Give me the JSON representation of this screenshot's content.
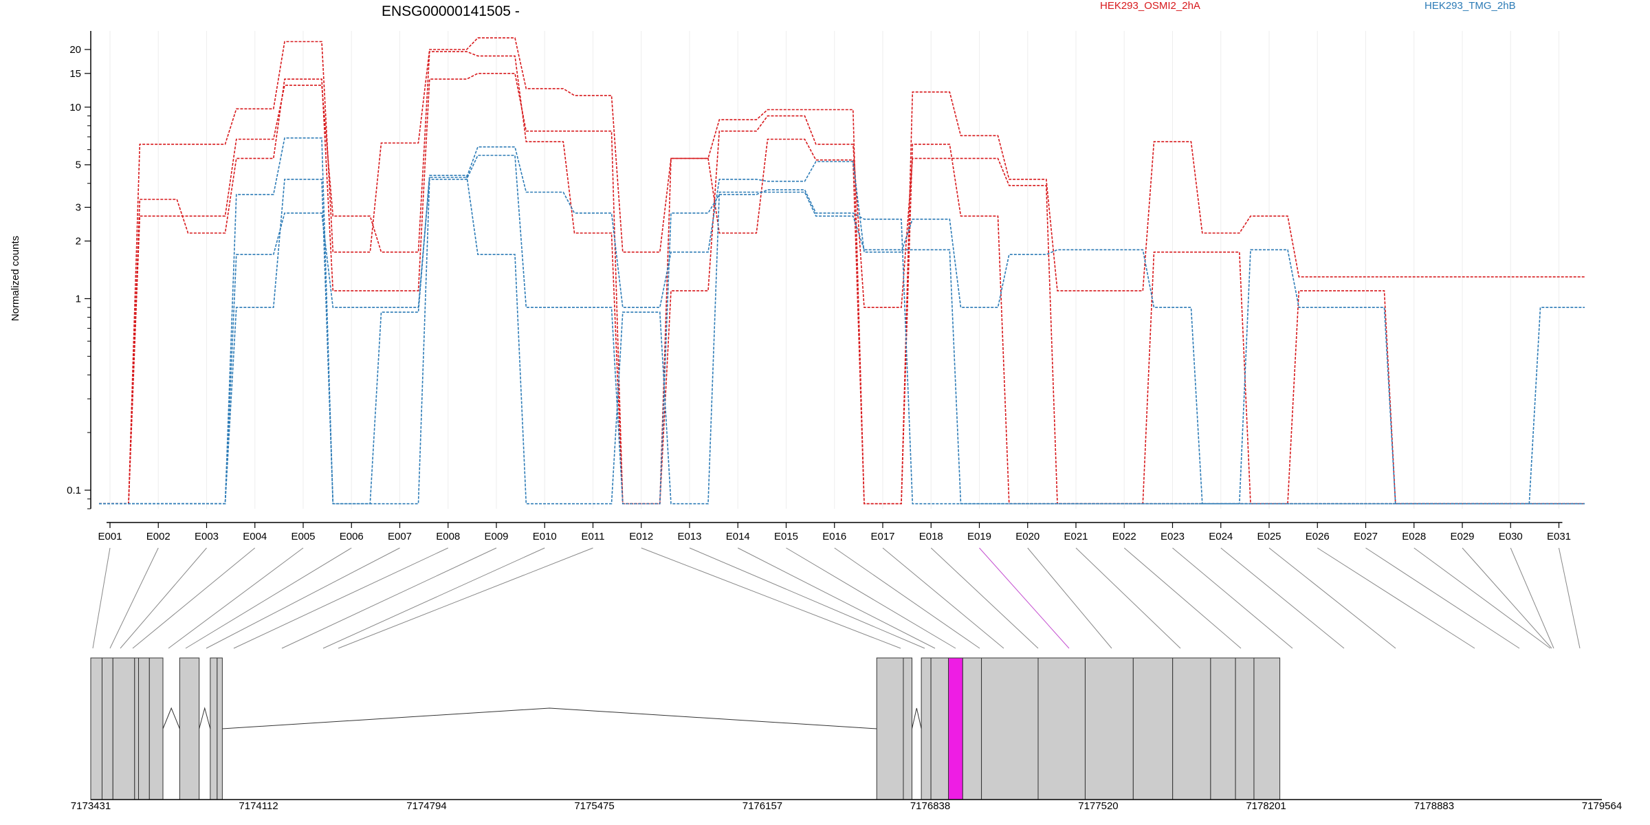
{
  "chart_data": {
    "type": "line",
    "title": "ENSG00000141505 -",
    "ylabel": "Normalized counts",
    "y_scale": "log",
    "ylim": [
      0.08,
      25
    ],
    "y_ticks": [
      0.1,
      1,
      2,
      3,
      5,
      10,
      15,
      20
    ],
    "y_tick_labels": [
      "0.1",
      "1",
      "2",
      "3",
      "5",
      "10",
      "15",
      "20"
    ],
    "grid": true,
    "legend_placement": "top",
    "categories": [
      "E001",
      "E002",
      "E003",
      "E004",
      "E005",
      "E006",
      "E007",
      "E008",
      "E009",
      "E010",
      "E011",
      "E012",
      "E013",
      "E014",
      "E015",
      "E016",
      "E017",
      "E018",
      "E019",
      "E020",
      "E021",
      "E022",
      "E023",
      "E024",
      "E025",
      "E026",
      "E027",
      "E028",
      "E029",
      "E030",
      "E031"
    ],
    "groups": [
      {
        "name": "HEK293_OSMI2_2hA",
        "color": "#d7191c"
      },
      {
        "name": "HEK293_TMG_2hB",
        "color": "#2c7bb6"
      }
    ],
    "series": [
      {
        "group": 0,
        "values": [
          0.085,
          6.4,
          6.4,
          9.8,
          22,
          1.75,
          6.5,
          20,
          23,
          12.5,
          11.5,
          1.75,
          5.4,
          8.6,
          9.7,
          9.7,
          0.085,
          12,
          7.1,
          4.2,
          1.1,
          1.1,
          6.6,
          2.2,
          2.7,
          1.3,
          1.3,
          1.3,
          1.3,
          1.3,
          1.3
        ]
      },
      {
        "group": 0,
        "values": [
          0.085,
          3.3,
          2.2,
          5.4,
          14,
          1.1,
          1.1,
          14,
          15,
          7.5,
          7.5,
          0.085,
          1.1,
          7.5,
          9,
          6.4,
          0.9,
          5.4,
          5.4,
          3.9,
          0.085,
          0.085,
          1.75,
          1.75,
          0.085,
          1.1,
          1.1,
          0.085,
          0.085,
          0.085,
          0.085
        ]
      },
      {
        "group": 0,
        "values": [
          0.085,
          2.7,
          2.7,
          6.8,
          13,
          2.7,
          1.75,
          19.5,
          18.5,
          6.6,
          2.2,
          0.085,
          5.4,
          2.2,
          6.8,
          5.3,
          0.085,
          6.4,
          2.7,
          0.085,
          0.085,
          0.085,
          0.085,
          0.085,
          0.085,
          0.085,
          0.085,
          0.085,
          0.085,
          0.085,
          0.085
        ]
      },
      {
        "group": 1,
        "values": [
          0.085,
          0.085,
          0.085,
          1.7,
          2.8,
          0.9,
          0.9,
          4.3,
          6.2,
          3.6,
          2.8,
          0.9,
          1.75,
          4.2,
          4.1,
          5.2,
          1.75,
          2.6,
          0.9,
          1.7,
          1.8,
          1.8,
          0.9,
          0.085,
          1.8,
          0.9,
          0.9,
          0.085,
          0.085,
          0.085,
          0.9
        ]
      },
      {
        "group": 1,
        "values": [
          0.085,
          0.085,
          0.085,
          0.9,
          4.2,
          0.085,
          0.085,
          4.2,
          5.6,
          0.9,
          0.9,
          0.085,
          2.8,
          3.5,
          3.7,
          2.8,
          2.6,
          0.085,
          0.085,
          0.085,
          0.085,
          0.085,
          0.085,
          0.085,
          0.085,
          0.085,
          0.085,
          0.085,
          0.085,
          0.085,
          0.085
        ]
      },
      {
        "group": 1,
        "values": [
          0.085,
          0.085,
          0.085,
          3.5,
          6.9,
          0.085,
          0.85,
          4.4,
          1.7,
          0.085,
          0.085,
          0.85,
          0.085,
          3.6,
          3.6,
          2.7,
          1.8,
          1.8,
          0.085,
          0.085,
          0.085,
          0.085,
          0.085,
          0.085,
          0.085,
          0.085,
          0.085,
          0.085,
          0.085,
          0.085,
          0.085
        ]
      }
    ],
    "gene_model": {
      "x_ticks": [
        7173431,
        7174112,
        7174794,
        7175475,
        7176157,
        7176838,
        7177520,
        7178201,
        7178883,
        7179564
      ],
      "highlighted_exon": "E019",
      "exon_color": "#cccccc",
      "highlight_color": "#ee1de4"
    }
  }
}
